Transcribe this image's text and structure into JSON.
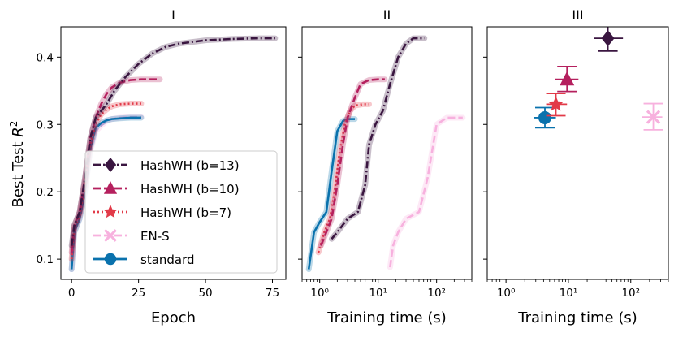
{
  "colors": {
    "hash13": "#3a1640",
    "hash10": "#b5205e",
    "hash7": "#e23a48",
    "ens": "#f7b1de",
    "standard": "#0a72ad"
  },
  "chart_data": {
    "type": "line",
    "ylabel": "Best Test R²",
    "ylim": [
      0.07,
      0.445
    ],
    "yticks": [
      "0.1",
      "0.2",
      "0.3",
      "0.4"
    ],
    "legend": {
      "placement": "lower-left of panel I",
      "entries": [
        {
          "key": "hash13",
          "label": "HashWH (b=13)",
          "marker": "diamond",
          "dash": "dashdot"
        },
        {
          "key": "hash10",
          "label": "HashWH (b=10)",
          "marker": "triangle",
          "dash": "dashed"
        },
        {
          "key": "hash7",
          "label": "HashWH (b=7)",
          "marker": "star",
          "dash": "dotted"
        },
        {
          "key": "ens",
          "label": "EN-S",
          "marker": "x",
          "dash": "dashed"
        },
        {
          "key": "standard",
          "label": "standard",
          "marker": "circle",
          "dash": "solid"
        }
      ]
    },
    "panels": [
      {
        "title": "I",
        "xlabel": "Epoch",
        "xscale": "linear",
        "xlim": [
          -4,
          80
        ],
        "xticks": [
          "0",
          "25",
          "50",
          "75"
        ],
        "series": [
          {
            "key": "ens",
            "x": [
              0,
              1,
              3,
              5,
              7,
              9,
              11,
              13,
              15,
              18,
              22,
              26
            ],
            "y": [
              0.085,
              0.14,
              0.16,
              0.2,
              0.26,
              0.29,
              0.298,
              0.305,
              0.308,
              0.31,
              0.311,
              0.311
            ]
          },
          {
            "key": "standard",
            "x": [
              0,
              1,
              3,
              5,
              7,
              9,
              11,
              13,
              15,
              18,
              22,
              26
            ],
            "y": [
              0.085,
              0.14,
              0.16,
              0.2,
              0.265,
              0.295,
              0.302,
              0.306,
              0.308,
              0.309,
              0.31,
              0.31
            ]
          },
          {
            "key": "hash7",
            "x": [
              0,
              1,
              3,
              5,
              7,
              9,
              11,
              13,
              15,
              18,
              22,
              26
            ],
            "y": [
              0.1,
              0.145,
              0.165,
              0.21,
              0.27,
              0.3,
              0.315,
              0.322,
              0.327,
              0.33,
              0.331,
              0.331
            ]
          },
          {
            "key": "hash10",
            "x": [
              0,
              1,
              3,
              5,
              7,
              9,
              11,
              13,
              15,
              18,
              22,
              26,
              30,
              33
            ],
            "y": [
              0.11,
              0.15,
              0.17,
              0.22,
              0.28,
              0.31,
              0.33,
              0.345,
              0.355,
              0.362,
              0.366,
              0.367,
              0.367,
              0.367
            ]
          },
          {
            "key": "hash13",
            "x": [
              0,
              1,
              3,
              5,
              7,
              9,
              11,
              13,
              16,
              20,
              25,
              30,
              35,
              40,
              50,
              60,
              70,
              76
            ],
            "y": [
              0.12,
              0.15,
              0.17,
              0.22,
              0.28,
              0.31,
              0.32,
              0.33,
              0.35,
              0.37,
              0.39,
              0.405,
              0.415,
              0.42,
              0.425,
              0.427,
              0.428,
              0.428
            ]
          }
        ]
      },
      {
        "title": "II",
        "xlabel": "Training time (s)",
        "xscale": "log",
        "xlim": [
          0.5,
          400
        ],
        "xticks": [
          "10⁰",
          "10¹",
          "10²"
        ],
        "series": [
          {
            "key": "standard",
            "x": [
              0.65,
              0.8,
              1.0,
              1.3,
              1.6,
              2.0,
              2.5,
              3.0,
              4.0
            ],
            "y": [
              0.085,
              0.14,
              0.155,
              0.17,
              0.23,
              0.29,
              0.305,
              0.308,
              0.308
            ]
          },
          {
            "key": "ens",
            "x": [
              16,
              18,
              22,
              30,
              50,
              70,
              100,
              150,
              200,
              280
            ],
            "y": [
              0.088,
              0.12,
              0.14,
              0.16,
              0.17,
              0.22,
              0.3,
              0.31,
              0.31,
              0.31
            ]
          },
          {
            "key": "hash7",
            "x": [
              0.95,
              1.2,
              1.5,
              1.8,
              2.2,
              2.7,
              3.3,
              4.0,
              5.5,
              7.0
            ],
            "y": [
              0.11,
              0.14,
              0.16,
              0.2,
              0.26,
              0.3,
              0.32,
              0.328,
              0.33,
              0.33
            ]
          },
          {
            "key": "hash10",
            "x": [
              1.05,
              1.3,
              1.6,
              2.0,
              2.5,
              3.0,
              4.0,
              5.0,
              7.0,
              10.0,
              13.0
            ],
            "y": [
              0.12,
              0.14,
              0.16,
              0.21,
              0.27,
              0.31,
              0.34,
              0.36,
              0.366,
              0.367,
              0.367
            ]
          },
          {
            "key": "hash13",
            "x": [
              1.6,
              2.0,
              3.0,
              4.5,
              6.0,
              7.0,
              9.0,
              12.0,
              16.0,
              22.0,
              30.0,
              40.0,
              50.0,
              62.0
            ],
            "y": [
              0.13,
              0.14,
              0.16,
              0.17,
              0.21,
              0.27,
              0.3,
              0.32,
              0.36,
              0.4,
              0.42,
              0.428,
              0.428,
              0.428
            ]
          }
        ]
      },
      {
        "title": "III",
        "xlabel": "Training time (s)",
        "xscale": "log",
        "xlim": [
          0.5,
          400
        ],
        "xticks": [
          "10⁰",
          "10¹",
          "10²"
        ],
        "series": [
          {
            "key": "standard",
            "x": [
              4.2
            ],
            "y": [
              0.31
            ],
            "xerr": [
              2.8,
              6.3
            ],
            "yerr": [
              0.295,
              0.325
            ]
          },
          {
            "key": "hash7",
            "x": [
              6.3
            ],
            "y": [
              0.33
            ],
            "xerr": [
              4.4,
              9.5
            ],
            "yerr": [
              0.313,
              0.346
            ]
          },
          {
            "key": "hash10",
            "x": [
              9.5
            ],
            "y": [
              0.367
            ],
            "xerr": [
              6.2,
              14.5
            ],
            "yerr": [
              0.349,
              0.386
            ]
          },
          {
            "key": "ens",
            "x": [
              230
            ],
            "y": [
              0.311
            ],
            "xerr": [
              150,
              320
            ],
            "yerr": [
              0.292,
              0.331
            ]
          },
          {
            "key": "hash13",
            "x": [
              43
            ],
            "y": [
              0.428
            ],
            "xerr": [
              26,
              75
            ],
            "yerr": [
              0.409,
              0.447
            ]
          }
        ]
      }
    ]
  }
}
